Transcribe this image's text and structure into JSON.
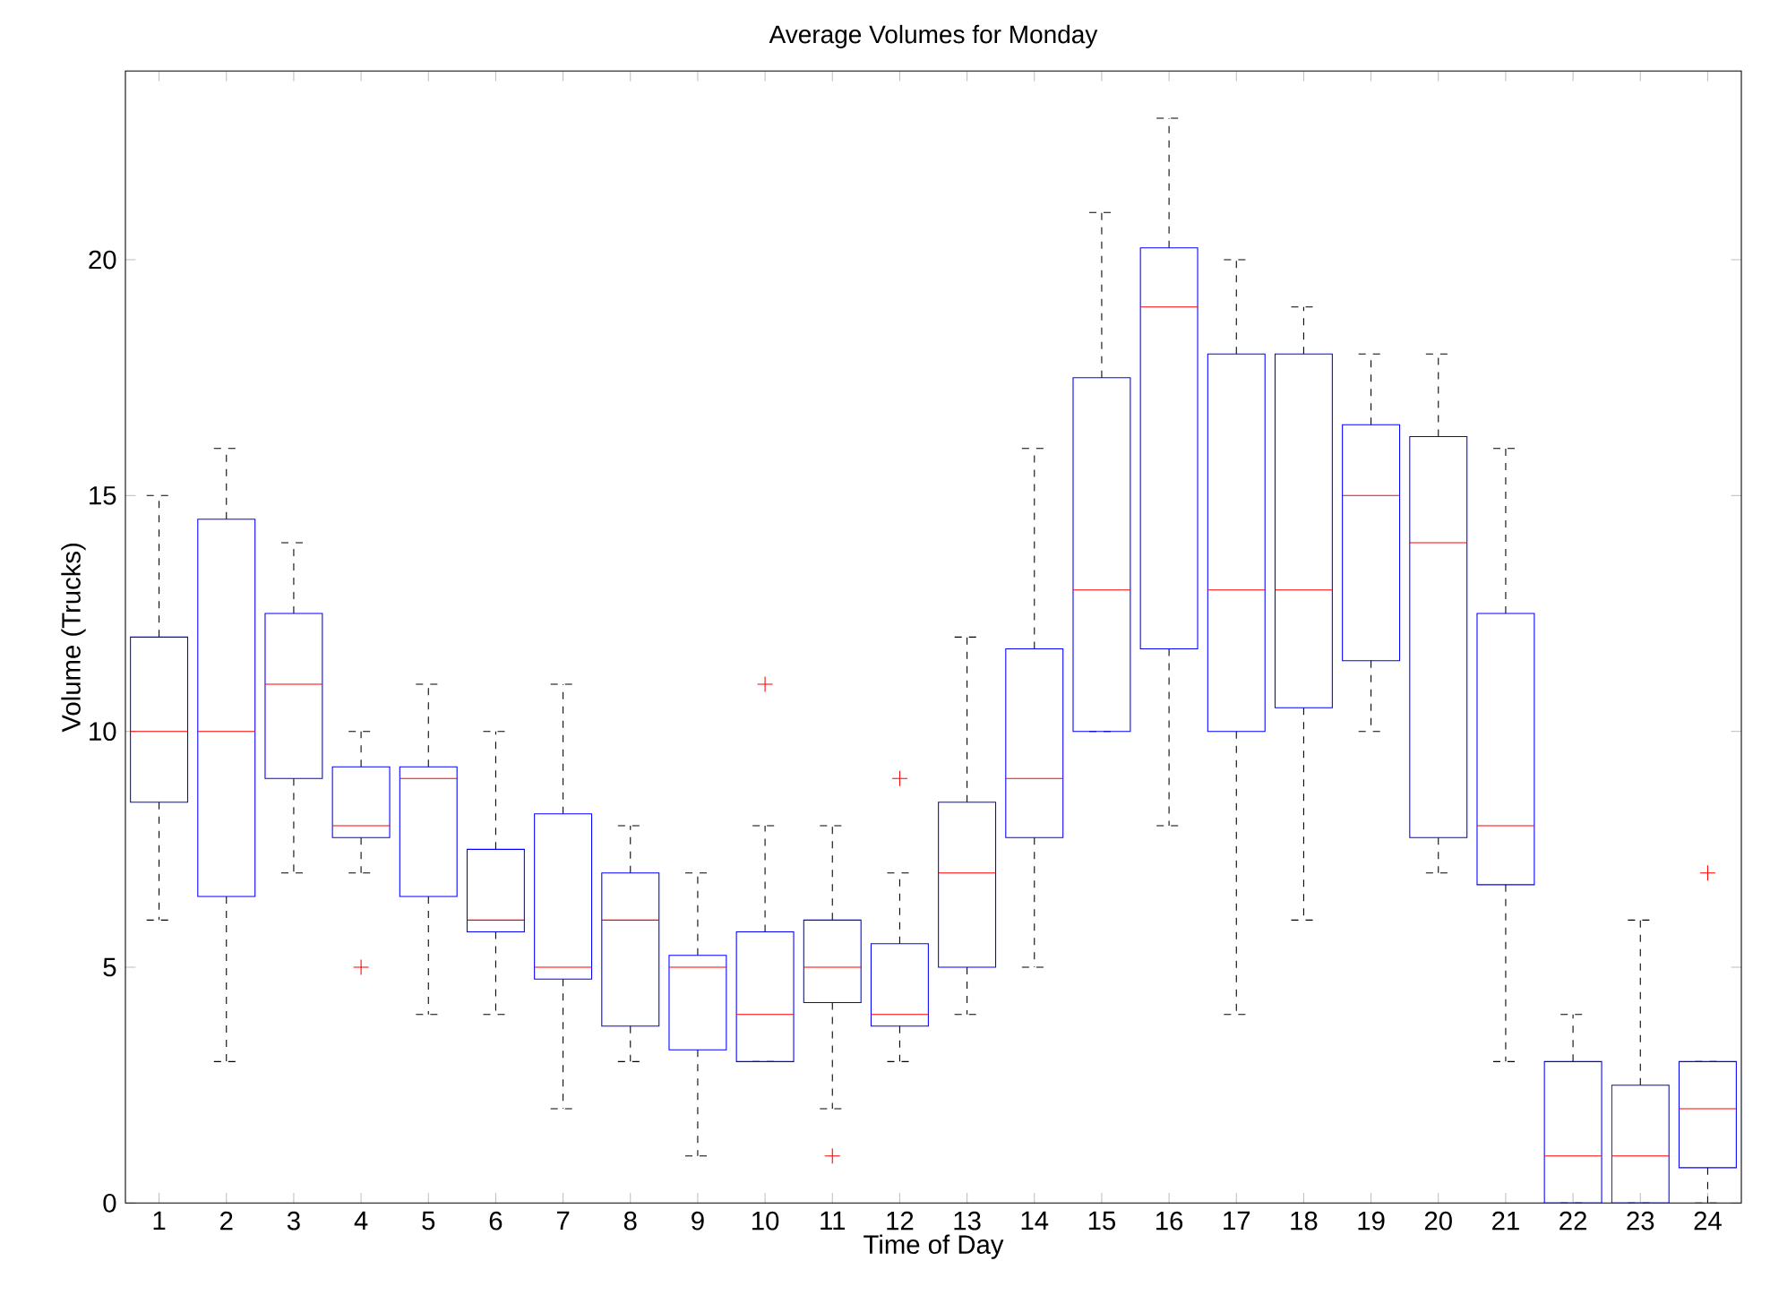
{
  "chart_data": {
    "type": "box",
    "title": "Average Volumes for Monday",
    "xlabel": "Time of Day",
    "ylabel": "Volume (Trucks)",
    "categories": [
      "1",
      "2",
      "3",
      "4",
      "5",
      "6",
      "7",
      "8",
      "9",
      "10",
      "11",
      "12",
      "13",
      "14",
      "15",
      "16",
      "17",
      "18",
      "19",
      "20",
      "21",
      "22",
      "23",
      "24"
    ],
    "color": "#0000ff",
    "ylim": [
      0,
      24
    ],
    "yticks": [
      0,
      5,
      10,
      15,
      20
    ],
    "boxes": [
      {
        "low": 6,
        "q1": 8.5,
        "median": 10,
        "q3": 12,
        "high": 15
      },
      {
        "low": 3,
        "q1": 6.5,
        "median": 10,
        "q3": 14.5,
        "high": 16
      },
      {
        "low": 7,
        "q1": 9,
        "median": 11,
        "q3": 12.5,
        "high": 14
      },
      {
        "low": 7,
        "q1": 7.75,
        "median": 8,
        "q3": 9.25,
        "high": 10,
        "outliers": [
          5
        ]
      },
      {
        "low": 4,
        "q1": 6.5,
        "median": 9,
        "q3": 9.25,
        "high": 11
      },
      {
        "low": 4,
        "q1": 5.75,
        "median": 6,
        "q3": 7.5,
        "high": 10
      },
      {
        "low": 2,
        "q1": 4.75,
        "median": 5,
        "q3": 8.25,
        "high": 11
      },
      {
        "low": 3,
        "q1": 3.75,
        "median": 6,
        "q3": 7,
        "high": 8
      },
      {
        "low": 1,
        "q1": 3.25,
        "median": 5,
        "q3": 5.25,
        "high": 7
      },
      {
        "low": 3,
        "q1": 3,
        "median": 4,
        "q3": 5.75,
        "high": 8,
        "outliers": [
          11
        ]
      },
      {
        "low": 2,
        "q1": 4.25,
        "median": 5,
        "q3": 6,
        "high": 8,
        "outliers": [
          1
        ]
      },
      {
        "low": 3,
        "q1": 3.75,
        "median": 4,
        "q3": 5.5,
        "high": 7,
        "outliers": [
          9
        ]
      },
      {
        "low": 4,
        "q1": 5,
        "median": 7,
        "q3": 8.5,
        "high": 12
      },
      {
        "low": 5,
        "q1": 7.75,
        "median": 9,
        "q3": 11.75,
        "high": 16
      },
      {
        "low": 10,
        "q1": 10,
        "median": 13,
        "q3": 17.5,
        "high": 21
      },
      {
        "low": 8,
        "q1": 11.75,
        "median": 19,
        "q3": 20.25,
        "high": 23
      },
      {
        "low": 4,
        "q1": 10,
        "median": 13,
        "q3": 18,
        "high": 20
      },
      {
        "low": 6,
        "q1": 10.5,
        "median": 13,
        "q3": 18,
        "high": 19
      },
      {
        "low": 10,
        "q1": 11.5,
        "median": 15,
        "q3": 16.5,
        "high": 18
      },
      {
        "low": 7,
        "q1": 7.75,
        "median": 14,
        "q3": 16.25,
        "high": 18
      },
      {
        "low": 3,
        "q1": 6.75,
        "median": 8,
        "q3": 12.5,
        "high": 16
      },
      {
        "low": 0,
        "q1": 0,
        "median": 1,
        "q3": 3,
        "high": 4
      },
      {
        "low": 0,
        "q1": 0,
        "median": 1,
        "q3": 2.5,
        "high": 6
      },
      {
        "low": 0,
        "q1": 0.75,
        "median": 2,
        "q3": 3,
        "high": 3,
        "outliers": [
          7
        ]
      }
    ]
  }
}
